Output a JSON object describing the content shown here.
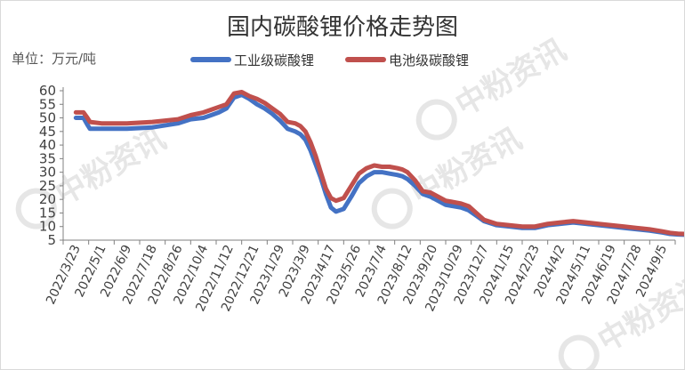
{
  "chart_data": {
    "type": "line",
    "title": "国内碳酸锂价格走势图",
    "unit_label": "单位：万元/吨",
    "watermark": "中粉资讯",
    "ylim": [
      5,
      60
    ],
    "yticks": [
      5,
      10,
      15,
      20,
      25,
      30,
      35,
      40,
      45,
      50,
      55,
      60
    ],
    "x_ticks": [
      "2022/3/23",
      "2022/5/1",
      "2022/6/9",
      "2022/7/18",
      "2022/8/26",
      "2022/10/4",
      "2022/11/12",
      "2022/12/21",
      "2023/1/29",
      "2023/3/9",
      "2023/4/17",
      "2023/5/26",
      "2023/7/4",
      "2023/8/12",
      "2023/9/20",
      "2023/10/29",
      "2023/12/7",
      "2024/1/15",
      "2024/2/23",
      "2024/4/2",
      "2024/5/11",
      "2024/6/19",
      "2024/7/28",
      "2024/9/5"
    ],
    "legend_position": "top",
    "series": [
      {
        "name": "工业级碳酸锂",
        "color": "#4472c4",
        "x": [
          0,
          0.3,
          0.45,
          0.55,
          1,
          2,
          3,
          4,
          4.5,
          5,
          5.3,
          5.6,
          5.9,
          6.2,
          6.5,
          6.8,
          7.1,
          7.4,
          7.7,
          8,
          8.3,
          8.6,
          8.8,
          9,
          9.2,
          9.4,
          9.6,
          9.8,
          10,
          10.2,
          10.5,
          10.8,
          11.1,
          11.4,
          11.7,
          12,
          12.3,
          12.6,
          12.8,
          13,
          13.3,
          13.6,
          13.9,
          14.2,
          14.5,
          14.8,
          15.1,
          15.4,
          15.7,
          16,
          16.5,
          17,
          17.5,
          18,
          18.5,
          19,
          19.5,
          20,
          20.5,
          21,
          21.5,
          22,
          22.5,
          23,
          23.3,
          23.6,
          23.9,
          23.97
        ],
        "values": [
          50,
          50,
          47.5,
          46,
          46,
          46,
          46.5,
          48,
          49.5,
          50,
          51,
          52,
          53.5,
          57.5,
          58.5,
          57,
          55,
          53.5,
          51.5,
          49,
          46,
          45,
          44,
          42,
          38,
          33,
          28,
          22,
          17,
          15.5,
          16.5,
          21,
          26,
          28.5,
          30,
          30,
          29.5,
          29,
          28.5,
          27.5,
          25,
          22,
          21,
          19.5,
          18,
          17.5,
          17,
          16,
          14,
          12,
          10.5,
          10,
          9.5,
          9.5,
          10.5,
          11,
          11.5,
          11,
          10.5,
          10,
          9.5,
          9,
          8.5,
          7.8,
          7.3,
          7.1,
          7,
          7
        ]
      },
      {
        "name": "电池级碳酸锂",
        "color": "#c0504d",
        "x": [
          0,
          0.3,
          0.45,
          0.55,
          1,
          2,
          3,
          4,
          4.5,
          5,
          5.3,
          5.6,
          5.9,
          6.2,
          6.5,
          6.8,
          7.1,
          7.4,
          7.7,
          8,
          8.3,
          8.6,
          8.8,
          9,
          9.2,
          9.4,
          9.6,
          9.8,
          10,
          10.2,
          10.5,
          10.8,
          11.1,
          11.4,
          11.7,
          12,
          12.3,
          12.6,
          12.8,
          13,
          13.3,
          13.6,
          13.9,
          14.2,
          14.5,
          14.8,
          15.1,
          15.4,
          15.7,
          16,
          16.5,
          17,
          17.5,
          18,
          18.5,
          19,
          19.5,
          20,
          20.5,
          21,
          21.5,
          22,
          22.5,
          23,
          23.3,
          23.6,
          23.9,
          23.97
        ],
        "values": [
          52,
          52,
          50,
          48.5,
          48,
          48,
          48.5,
          49.5,
          51,
          52,
          53,
          54,
          55,
          59,
          59.5,
          58,
          57,
          55.5,
          53.5,
          51.5,
          48.5,
          48,
          47,
          45,
          41,
          36,
          30,
          24,
          20.5,
          19.5,
          20.5,
          25,
          29.5,
          31.5,
          32.5,
          32,
          32,
          31.5,
          31,
          30,
          27,
          23,
          22.5,
          21,
          19.5,
          19,
          18.5,
          17.5,
          15,
          12.5,
          11,
          10.5,
          10,
          10,
          11,
          11.5,
          12,
          11.5,
          11,
          10.5,
          10,
          9.5,
          9,
          8.2,
          7.7,
          7.4,
          7.3,
          7.3
        ]
      }
    ]
  }
}
